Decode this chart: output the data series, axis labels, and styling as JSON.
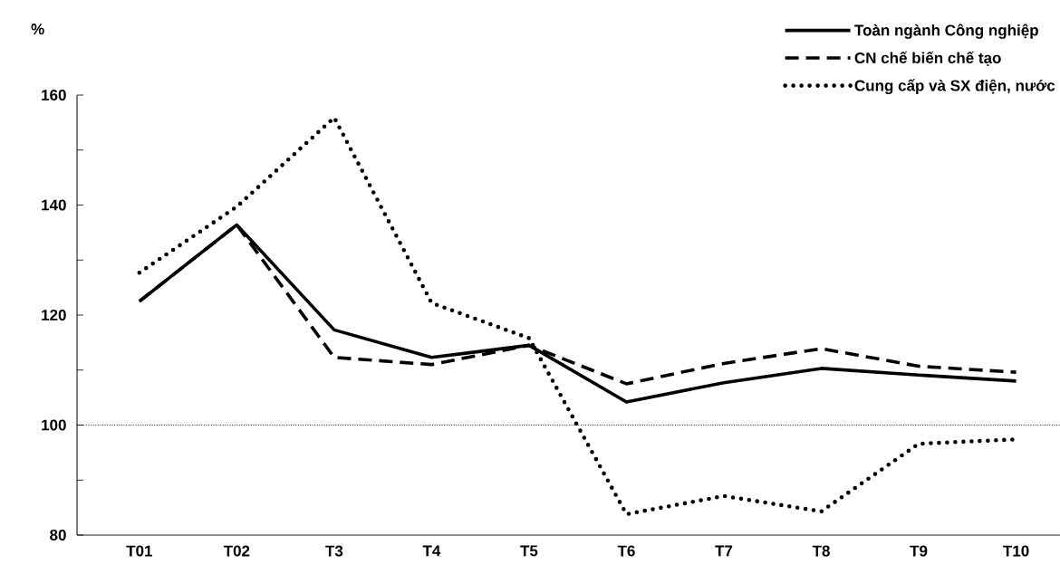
{
  "chart_data": {
    "type": "line",
    "ylabel": "%",
    "categories": [
      "T01",
      "T02",
      "T3",
      "T4",
      "T5",
      "T6",
      "T7",
      "T8",
      "T9",
      "T10"
    ],
    "ylim": [
      80,
      160
    ],
    "yticks": [
      80,
      {
        "value": 90,
        "label": null
      },
      100,
      {
        "value": 110,
        "label": null
      },
      120,
      {
        "value": 130,
        "label": null
      },
      140,
      {
        "value": 150,
        "label": null
      },
      160
    ],
    "legend": "top right",
    "ref_lines": [
      {
        "axis": "y",
        "value": 100,
        "color": "#000000",
        "line_style": "dotted"
      }
    ],
    "series": [
      {
        "name": "Toàn ngành Công nghiệp",
        "color": "#000000",
        "line_style": "solid",
        "values": [
          122.5,
          136.4,
          117.3,
          112.3,
          114.5,
          104.2,
          107.7,
          110.3,
          109.1,
          108.0
        ]
      },
      {
        "name": "CN chế biến chế tạo",
        "color": "#000000",
        "line_style": "dashed",
        "values": [
          122.5,
          136.4,
          112.3,
          111.0,
          114.5,
          107.5,
          111.2,
          113.9,
          110.7,
          109.6
        ]
      },
      {
        "name": "Cung cấp và SX điện, nước",
        "color": "#000000",
        "line_style": "dotted",
        "values": [
          127.7,
          139.7,
          155.9,
          122.2,
          115.8,
          83.8,
          87.1,
          84.3,
          96.6,
          97.4
        ]
      }
    ]
  }
}
